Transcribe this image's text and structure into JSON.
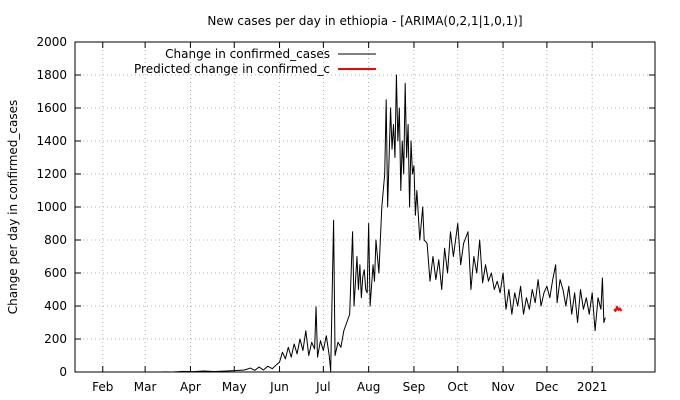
{
  "chart_data": {
    "type": "line",
    "title": "New cases per day in ethiopia -  [ARIMA(0,2,1|1,0,1)]",
    "xlabel": "",
    "ylabel": "Change per day in confirmed_cases",
    "ylim": [
      0,
      2000
    ],
    "yticks": [
      0,
      200,
      400,
      600,
      800,
      1000,
      1200,
      1400,
      1600,
      1800,
      2000
    ],
    "xlim": [
      "2020-01-13",
      "2021-02-13"
    ],
    "xticks": [
      {
        "label": "Feb",
        "date": "2020-02-01"
      },
      {
        "label": "Mar",
        "date": "2020-03-01"
      },
      {
        "label": "Apr",
        "date": "2020-04-01"
      },
      {
        "label": "May",
        "date": "2020-05-01"
      },
      {
        "label": "Jun",
        "date": "2020-06-01"
      },
      {
        "label": "Jul",
        "date": "2020-07-01"
      },
      {
        "label": "Aug",
        "date": "2020-08-01"
      },
      {
        "label": "Sep",
        "date": "2020-09-01"
      },
      {
        "label": "Oct",
        "date": "2020-10-01"
      },
      {
        "label": "Nov",
        "date": "2020-11-01"
      },
      {
        "label": "Dec",
        "date": "2020-12-01"
      },
      {
        "label": "2021",
        "date": "2021-01-01"
      }
    ],
    "grid": true,
    "legend_position": "top-left",
    "series": [
      {
        "name": "Change in confirmed_cases",
        "color": "#000000",
        "points": [
          [
            "2020-03-13",
            1
          ],
          [
            "2020-03-20",
            0
          ],
          [
            "2020-03-27",
            4
          ],
          [
            "2020-04-03",
            2
          ],
          [
            "2020-04-10",
            6
          ],
          [
            "2020-04-17",
            3
          ],
          [
            "2020-04-24",
            5
          ],
          [
            "2020-05-01",
            8
          ],
          [
            "2020-05-08",
            12
          ],
          [
            "2020-05-12",
            24
          ],
          [
            "2020-05-15",
            10
          ],
          [
            "2020-05-18",
            30
          ],
          [
            "2020-05-21",
            12
          ],
          [
            "2020-05-24",
            35
          ],
          [
            "2020-05-27",
            20
          ],
          [
            "2020-05-30",
            45
          ],
          [
            "2020-06-01",
            60
          ],
          [
            "2020-06-03",
            120
          ],
          [
            "2020-06-05",
            80
          ],
          [
            "2020-06-07",
            150
          ],
          [
            "2020-06-09",
            90
          ],
          [
            "2020-06-11",
            170
          ],
          [
            "2020-06-13",
            110
          ],
          [
            "2020-06-15",
            200
          ],
          [
            "2020-06-17",
            130
          ],
          [
            "2020-06-19",
            250
          ],
          [
            "2020-06-21",
            100
          ],
          [
            "2020-06-23",
            180
          ],
          [
            "2020-06-25",
            140
          ],
          [
            "2020-06-26",
            395
          ],
          [
            "2020-06-27",
            90
          ],
          [
            "2020-06-29",
            190
          ],
          [
            "2020-07-01",
            130
          ],
          [
            "2020-07-03",
            220
          ],
          [
            "2020-07-05",
            100
          ],
          [
            "2020-07-06",
            5
          ],
          [
            "2020-07-08",
            920
          ],
          [
            "2020-07-09",
            100
          ],
          [
            "2020-07-11",
            180
          ],
          [
            "2020-07-13",
            150
          ],
          [
            "2020-07-15",
            250
          ],
          [
            "2020-07-17",
            300
          ],
          [
            "2020-07-19",
            350
          ],
          [
            "2020-07-21",
            850
          ],
          [
            "2020-07-22",
            400
          ],
          [
            "2020-07-24",
            700
          ],
          [
            "2020-07-25",
            500
          ],
          [
            "2020-07-26",
            650
          ],
          [
            "2020-07-27",
            450
          ],
          [
            "2020-07-28",
            580
          ],
          [
            "2020-07-29",
            620
          ],
          [
            "2020-07-30",
            500
          ],
          [
            "2020-07-31",
            480
          ],
          [
            "2020-08-01",
            900
          ],
          [
            "2020-08-02",
            400
          ],
          [
            "2020-08-04",
            650
          ],
          [
            "2020-08-05",
            550
          ],
          [
            "2020-08-06",
            800
          ],
          [
            "2020-08-08",
            600
          ],
          [
            "2020-08-10",
            1000
          ],
          [
            "2020-08-12",
            1200
          ],
          [
            "2020-08-13",
            1650
          ],
          [
            "2020-08-14",
            1000
          ],
          [
            "2020-08-16",
            1600
          ],
          [
            "2020-08-17",
            1350
          ],
          [
            "2020-08-18",
            1500
          ],
          [
            "2020-08-19",
            1300
          ],
          [
            "2020-08-20",
            1800
          ],
          [
            "2020-08-21",
            1400
          ],
          [
            "2020-08-22",
            1600
          ],
          [
            "2020-08-23",
            1100
          ],
          [
            "2020-08-24",
            1400
          ],
          [
            "2020-08-25",
            1200
          ],
          [
            "2020-08-26",
            1750
          ],
          [
            "2020-08-27",
            1300
          ],
          [
            "2020-08-28",
            1500
          ],
          [
            "2020-08-29",
            1000
          ],
          [
            "2020-08-30",
            1400
          ],
          [
            "2020-08-31",
            1200
          ],
          [
            "2020-09-01",
            1250
          ],
          [
            "2020-09-02",
            950
          ],
          [
            "2020-09-03",
            1100
          ],
          [
            "2020-09-05",
            800
          ],
          [
            "2020-09-07",
            1000
          ],
          [
            "2020-09-08",
            800
          ],
          [
            "2020-09-10",
            780
          ],
          [
            "2020-09-12",
            550
          ],
          [
            "2020-09-14",
            700
          ],
          [
            "2020-09-16",
            560
          ],
          [
            "2020-09-18",
            680
          ],
          [
            "2020-09-20",
            500
          ],
          [
            "2020-09-22",
            750
          ],
          [
            "2020-09-24",
            600
          ],
          [
            "2020-09-26",
            850
          ],
          [
            "2020-09-28",
            700
          ],
          [
            "2020-10-01",
            900
          ],
          [
            "2020-10-03",
            650
          ],
          [
            "2020-10-05",
            780
          ],
          [
            "2020-10-08",
            850
          ],
          [
            "2020-10-10",
            500
          ],
          [
            "2020-10-12",
            700
          ],
          [
            "2020-10-14",
            600
          ],
          [
            "2020-10-16",
            800
          ],
          [
            "2020-10-18",
            540
          ],
          [
            "2020-10-20",
            650
          ],
          [
            "2020-10-22",
            550
          ],
          [
            "2020-10-24",
            600
          ],
          [
            "2020-10-26",
            500
          ],
          [
            "2020-10-28",
            550
          ],
          [
            "2020-10-30",
            480
          ],
          [
            "2020-11-01",
            600
          ],
          [
            "2020-11-03",
            380
          ],
          [
            "2020-11-05",
            500
          ],
          [
            "2020-11-07",
            350
          ],
          [
            "2020-11-09",
            480
          ],
          [
            "2020-11-11",
            400
          ],
          [
            "2020-11-13",
            520
          ],
          [
            "2020-11-15",
            350
          ],
          [
            "2020-11-17",
            450
          ],
          [
            "2020-11-19",
            380
          ],
          [
            "2020-11-21",
            500
          ],
          [
            "2020-11-23",
            420
          ],
          [
            "2020-11-25",
            560
          ],
          [
            "2020-11-27",
            400
          ],
          [
            "2020-11-29",
            480
          ],
          [
            "2020-12-01",
            520
          ],
          [
            "2020-12-03",
            450
          ],
          [
            "2020-12-05",
            560
          ],
          [
            "2020-12-07",
            650
          ],
          [
            "2020-12-08",
            420
          ],
          [
            "2020-12-10",
            560
          ],
          [
            "2020-12-12",
            500
          ],
          [
            "2020-12-14",
            400
          ],
          [
            "2020-12-16",
            520
          ],
          [
            "2020-12-18",
            350
          ],
          [
            "2020-12-20",
            480
          ],
          [
            "2020-12-22",
            300
          ],
          [
            "2020-12-24",
            500
          ],
          [
            "2020-12-26",
            380
          ],
          [
            "2020-12-28",
            450
          ],
          [
            "2020-12-30",
            350
          ],
          [
            "2021-01-01",
            480
          ],
          [
            "2021-01-03",
            250
          ],
          [
            "2021-01-05",
            450
          ],
          [
            "2021-01-07",
            380
          ],
          [
            "2021-01-08",
            570
          ],
          [
            "2021-01-09",
            300
          ],
          [
            "2021-01-10",
            330
          ]
        ]
      },
      {
        "name": "Predicted change in confirmed_c",
        "color": "#ff0000",
        "points": [
          [
            "2021-01-16",
            380
          ],
          [
            "2021-01-17",
            370
          ],
          [
            "2021-01-18",
            395
          ],
          [
            "2021-01-19",
            375
          ],
          [
            "2021-01-20",
            385
          ],
          [
            "2021-01-21",
            370
          ]
        ]
      }
    ]
  }
}
